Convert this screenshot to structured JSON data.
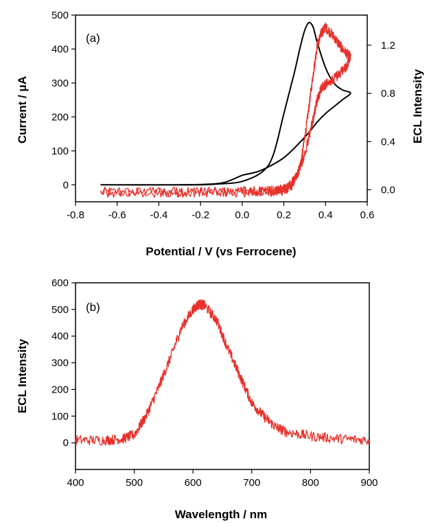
{
  "chart_data": [
    {
      "type": "line",
      "panel_label": "(a)",
      "xlabel": "Potential / V (vs Ferrocene)",
      "ylabel": "Current / μA",
      "y2label": "ECL Intensity",
      "xlim": [
        -0.8,
        0.6
      ],
      "ylim": [
        -50,
        500
      ],
      "y2lim": [
        -0.1,
        1.45
      ],
      "xticks": [
        "-0.8",
        "-0.6",
        "-0.4",
        "-0.2",
        "0.0",
        "0.2",
        "0.4",
        "0.6"
      ],
      "yticks": [
        "0",
        "100",
        "200",
        "300",
        "400",
        "500"
      ],
      "y2ticks": [
        "0.0",
        "0.4",
        "0.8",
        "1.2"
      ],
      "series": [
        {
          "axis": "left",
          "color": "#000000",
          "x": [
            -0.68,
            -0.4,
            -0.2,
            -0.1,
            0.0,
            0.1,
            0.15,
            0.2,
            0.25,
            0.28,
            0.3,
            0.32,
            0.34,
            0.36,
            0.4,
            0.44,
            0.48,
            0.52,
            0.48,
            0.44,
            0.4,
            0.36,
            0.3,
            0.2,
            0.1,
            0.05,
            0.0,
            -0.05,
            -0.1,
            -0.2,
            -0.4,
            -0.68
          ],
          "y": [
            0,
            0,
            0,
            3,
            10,
            40,
            90,
            210,
            330,
            410,
            455,
            478,
            465,
            420,
            345,
            300,
            280,
            270,
            250,
            230,
            210,
            185,
            140,
            80,
            45,
            35,
            28,
            15,
            5,
            1,
            0,
            0
          ]
        },
        {
          "axis": "right",
          "color": "#e8302a",
          "noisy": true,
          "x": [
            -0.68,
            -0.4,
            -0.2,
            0.0,
            0.15,
            0.2,
            0.24,
            0.28,
            0.31,
            0.34,
            0.36,
            0.38,
            0.4,
            0.44,
            0.48,
            0.52,
            0.5,
            0.46,
            0.42,
            0.38,
            0.36,
            0.34,
            0.3,
            0.26,
            0.22,
            0.18,
            0.1,
            0.0,
            -0.2,
            -0.4,
            -0.68
          ],
          "y": [
            -0.02,
            -0.02,
            -0.02,
            -0.02,
            -0.015,
            -0.005,
            0.04,
            0.2,
            0.55,
            0.95,
            1.2,
            1.3,
            1.35,
            1.27,
            1.17,
            1.1,
            1.02,
            0.95,
            0.9,
            0.85,
            0.75,
            0.58,
            0.3,
            0.1,
            0.02,
            0.0,
            -0.01,
            -0.015,
            -0.02,
            -0.02,
            -0.02
          ]
        }
      ]
    },
    {
      "type": "line",
      "panel_label": "(b)",
      "xlabel": "Wavelength / nm",
      "ylabel": "ECL Intensity",
      "xlim": [
        400,
        900
      ],
      "ylim": [
        -100,
        600
      ],
      "xticks": [
        "400",
        "500",
        "600",
        "700",
        "800",
        "900"
      ],
      "yticks": [
        "0",
        "100",
        "200",
        "300",
        "400",
        "500",
        "600"
      ],
      "series": [
        {
          "color": "#e8302a",
          "noisy": true,
          "x": [
            400,
            450,
            480,
            500,
            520,
            540,
            560,
            580,
            600,
            610,
            620,
            640,
            660,
            680,
            700,
            720,
            740,
            760,
            800,
            850,
            900
          ],
          "y": [
            10,
            10,
            15,
            30,
            100,
            200,
            310,
            430,
            500,
            520,
            515,
            460,
            350,
            250,
            150,
            100,
            60,
            40,
            25,
            15,
            10
          ]
        }
      ]
    }
  ]
}
